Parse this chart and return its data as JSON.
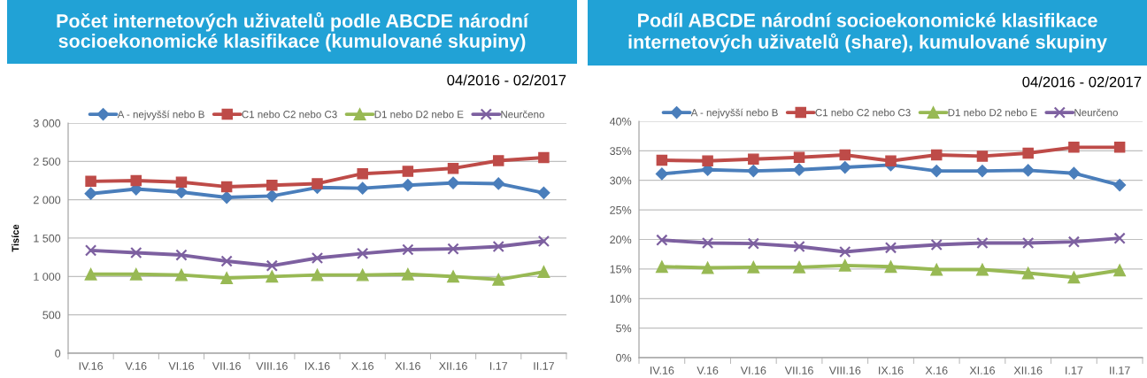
{
  "chart_data": [
    {
      "type": "line",
      "title": "Počet internetových uživatelů podle ABCDE národní\nsocioekonomické klasifikace (kumulované skupiny)",
      "ylabel": "Tisíce",
      "annotations": [
        "04/2016 - 02/2017"
      ],
      "categories": [
        "IV.16",
        "V.16",
        "VI.16",
        "VII.16",
        "VIII.16",
        "IX.16",
        "X.16",
        "XI.16",
        "XII.16",
        "I.17",
        "II.17"
      ],
      "series": [
        {
          "name": "A - nejvyšší nebo B",
          "color": "#4a7ebb",
          "marker": "diamond",
          "values": [
            2080,
            2140,
            2100,
            2030,
            2050,
            2160,
            2150,
            2190,
            2220,
            2210,
            2090
          ]
        },
        {
          "name": "C1 nebo C2 nebo C3",
          "color": "#be4b48",
          "marker": "square",
          "values": [
            2240,
            2250,
            2230,
            2170,
            2190,
            2210,
            2340,
            2370,
            2410,
            2510,
            2550
          ]
        },
        {
          "name": "D1 nebo D2 nebo E",
          "color": "#98b954",
          "marker": "triangle",
          "values": [
            1030,
            1030,
            1020,
            980,
            1000,
            1020,
            1020,
            1030,
            1000,
            960,
            1060
          ]
        },
        {
          "name": "Neurčeno",
          "color": "#7d60a0",
          "marker": "cross",
          "values": [
            1340,
            1310,
            1280,
            1200,
            1140,
            1240,
            1300,
            1350,
            1360,
            1390,
            1460
          ]
        }
      ],
      "ylim": [
        0,
        3000
      ],
      "yticks": [
        0,
        500,
        {
          "value": 1000,
          "label": "1 000"
        },
        {
          "value": 1500,
          "label": "1 500"
        },
        {
          "value": 2000,
          "label": "2 000"
        },
        {
          "value": 2500,
          "label": "2 500"
        },
        {
          "value": 3000,
          "label": "3 000"
        }
      ],
      "grid": "y",
      "legend": "top",
      "line_style": "solid"
    },
    {
      "type": "line",
      "title": "Podíl ABCDE národní socioekonomické klasifikace\ninternetových uživatelů (share), kumulované skupiny",
      "annotations": [
        "04/2016 - 02/2017"
      ],
      "categories": [
        "IV.16",
        "V.16",
        "VI.16",
        "VII.16",
        "VIII.16",
        "IX.16",
        "X.16",
        "XI.16",
        "XII.16",
        "I.17",
        "II.17"
      ],
      "series": [
        {
          "name": "A - nejvyšší nebo B",
          "color": "#4a7ebb",
          "marker": "diamond",
          "values": [
            31.1,
            31.8,
            31.6,
            31.8,
            32.2,
            32.6,
            31.6,
            31.6,
            31.7,
            31.2,
            29.2
          ]
        },
        {
          "name": "C1 nebo C2 nebo C3",
          "color": "#be4b48",
          "marker": "square",
          "values": [
            33.4,
            33.3,
            33.6,
            33.9,
            34.3,
            33.3,
            34.3,
            34.1,
            34.6,
            35.6,
            35.6
          ]
        },
        {
          "name": "D1 nebo D2 nebo E",
          "color": "#98b954",
          "marker": "triangle",
          "values": [
            15.4,
            15.2,
            15.3,
            15.3,
            15.6,
            15.4,
            14.9,
            14.9,
            14.3,
            13.6,
            14.8
          ]
        },
        {
          "name": "Neurčeno",
          "color": "#7d60a0",
          "marker": "cross",
          "values": [
            19.9,
            19.4,
            19.3,
            18.8,
            17.9,
            18.6,
            19.1,
            19.4,
            19.4,
            19.6,
            20.2
          ]
        }
      ],
      "ylim": [
        0,
        40
      ],
      "yticks": [
        {
          "value": 0,
          "label": "0%"
        },
        {
          "value": 5,
          "label": "5%"
        },
        {
          "value": 10,
          "label": "10%"
        },
        {
          "value": 15,
          "label": "15%"
        },
        {
          "value": 20,
          "label": "20%"
        },
        {
          "value": 25,
          "label": "25%"
        },
        {
          "value": 30,
          "label": "30%"
        },
        {
          "value": 35,
          "label": "35%"
        },
        {
          "value": 40,
          "label": "40%"
        }
      ],
      "grid": "y",
      "legend": "top",
      "line_style": "solid"
    }
  ]
}
